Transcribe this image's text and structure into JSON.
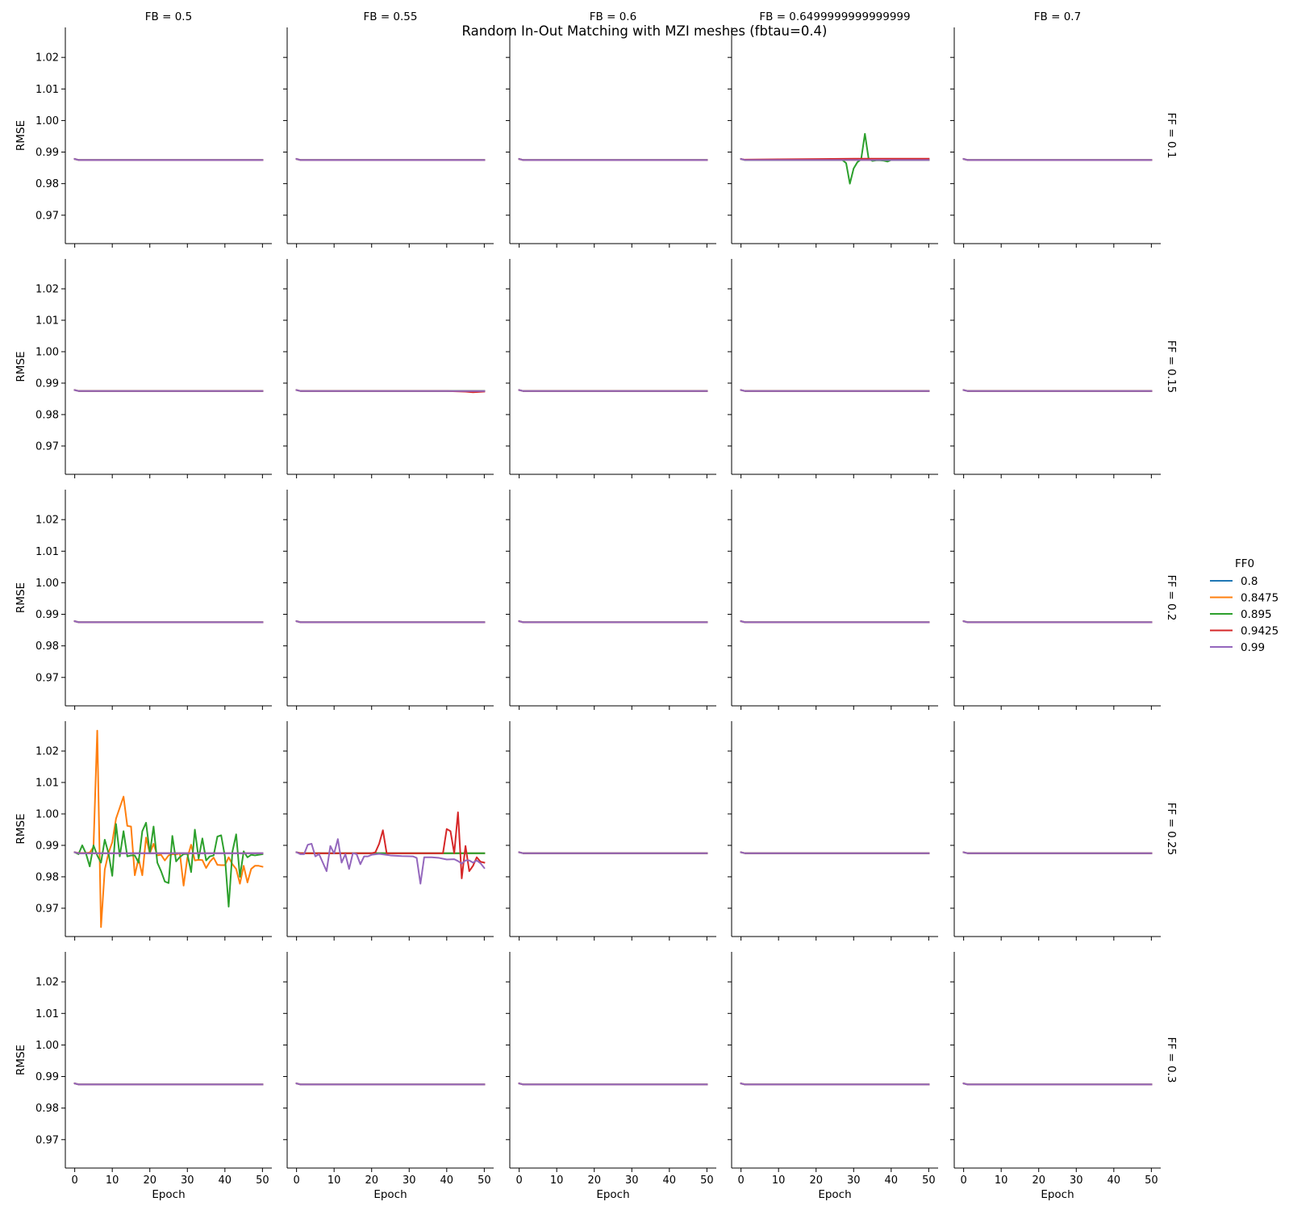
{
  "chart_data": {
    "type": "line",
    "title": "Random In-Out Matching with MZI meshes (fbtau=0.4)",
    "xlabel": "Epoch",
    "ylabel": "RMSE",
    "xlim": [
      -2.5,
      52.5
    ],
    "ylim": [
      0.961,
      1.0295
    ],
    "xticks": [
      "0",
      "10",
      "20",
      "30",
      "40",
      "50"
    ],
    "yticks": [
      "0.97",
      "0.98",
      "0.99",
      "1.00",
      "1.01",
      "1.02"
    ],
    "columns": [
      "FB = 0.5",
      "FB = 0.55",
      "FB = 0.6",
      "FB = 0.6499999999999999",
      "FB = 0.7"
    ],
    "rows": [
      "FF = 0.1",
      "FF = 0.15",
      "FF = 0.2",
      "FF = 0.25",
      "FF = 0.3"
    ],
    "legend": {
      "title": "FF0",
      "position": "right",
      "entries": [
        "0.8",
        "0.8475",
        "0.895",
        "0.9425",
        "0.99"
      ]
    },
    "series_colors": [
      "#1f77b4",
      "#ff7f0e",
      "#2ca02c",
      "#d62728",
      "#9467bd"
    ],
    "default_curve": [
      [
        0,
        0.9878
      ],
      [
        1,
        0.9875
      ],
      [
        50,
        0.9875
      ]
    ],
    "special_series": [
      {
        "row": 0,
        "col": 3,
        "series": 2,
        "points": [
          [
            0,
            0.9878
          ],
          [
            1,
            0.9875
          ],
          [
            27,
            0.9875
          ],
          [
            28,
            0.9865
          ],
          [
            29,
            0.98
          ],
          [
            30,
            0.9848
          ],
          [
            31,
            0.9868
          ],
          [
            32,
            0.9877
          ],
          [
            33,
            0.9958
          ],
          [
            34,
            0.9878
          ],
          [
            35,
            0.9872
          ],
          [
            36,
            0.9874
          ],
          [
            37,
            0.9874
          ],
          [
            38,
            0.9873
          ],
          [
            39,
            0.987
          ],
          [
            40,
            0.9875
          ],
          [
            50,
            0.9875
          ]
        ]
      },
      {
        "row": 0,
        "col": 3,
        "series": 3,
        "points": [
          [
            0,
            0.9878
          ],
          [
            1,
            0.9876
          ],
          [
            10,
            0.9877
          ],
          [
            30,
            0.9879
          ],
          [
            50,
            0.9879
          ]
        ]
      },
      {
        "row": 1,
        "col": 1,
        "series": 3,
        "points": [
          [
            0,
            0.9878
          ],
          [
            1,
            0.9875
          ],
          [
            40,
            0.9875
          ],
          [
            45,
            0.9873
          ],
          [
            47,
            0.9871
          ],
          [
            50,
            0.9873
          ]
        ]
      },
      {
        "row": 3,
        "col": 0,
        "series": 1,
        "points": [
          [
            0,
            0.9878
          ],
          [
            1,
            0.9876
          ],
          [
            2,
            0.9876
          ],
          [
            3,
            0.9876
          ],
          [
            4,
            0.9877
          ],
          [
            5,
            0.9895
          ],
          [
            6,
            1.0265
          ],
          [
            7,
            0.964
          ],
          [
            8,
            0.9823
          ],
          [
            9,
            0.9876
          ],
          [
            10,
            0.991
          ],
          [
            11,
            0.9985
          ],
          [
            12,
            1.002
          ],
          [
            13,
            1.0055
          ],
          [
            14,
            0.9962
          ],
          [
            15,
            0.996
          ],
          [
            16,
            0.9805
          ],
          [
            17,
            0.9858
          ],
          [
            18,
            0.9805
          ],
          [
            19,
            0.9925
          ],
          [
            20,
            0.9875
          ],
          [
            21,
            0.9905
          ],
          [
            22,
            0.9868
          ],
          [
            23,
            0.987
          ],
          [
            24,
            0.9852
          ],
          [
            25,
            0.9868
          ],
          [
            26,
            0.9872
          ],
          [
            27,
            0.9871
          ],
          [
            28,
            0.9875
          ],
          [
            29,
            0.9772
          ],
          [
            30,
            0.986
          ],
          [
            31,
            0.9902
          ],
          [
            32,
            0.9852
          ],
          [
            33,
            0.9854
          ],
          [
            34,
            0.9853
          ],
          [
            35,
            0.9828
          ],
          [
            36,
            0.9848
          ],
          [
            37,
            0.9861
          ],
          [
            38,
            0.9838
          ],
          [
            39,
            0.9837
          ],
          [
            40,
            0.9837
          ],
          [
            41,
            0.9862
          ],
          [
            42,
            0.984
          ],
          [
            43,
            0.9825
          ],
          [
            44,
            0.9778
          ],
          [
            45,
            0.9835
          ],
          [
            46,
            0.9782
          ],
          [
            47,
            0.9825
          ],
          [
            48,
            0.9835
          ],
          [
            49,
            0.9835
          ],
          [
            50,
            0.9832
          ]
        ]
      },
      {
        "row": 3,
        "col": 0,
        "series": 2,
        "points": [
          [
            0,
            0.9878
          ],
          [
            1,
            0.9872
          ],
          [
            2,
            0.99
          ],
          [
            3,
            0.9874
          ],
          [
            4,
            0.9833
          ],
          [
            5,
            0.99
          ],
          [
            6,
            0.9868
          ],
          [
            7,
            0.9845
          ],
          [
            8,
            0.9918
          ],
          [
            9,
            0.9875
          ],
          [
            10,
            0.9803
          ],
          [
            11,
            0.9968
          ],
          [
            12,
            0.9865
          ],
          [
            13,
            0.9945
          ],
          [
            14,
            0.9865
          ],
          [
            15,
            0.9868
          ],
          [
            16,
            0.9868
          ],
          [
            17,
            0.9845
          ],
          [
            18,
            0.9945
          ],
          [
            19,
            0.9972
          ],
          [
            20,
            0.9875
          ],
          [
            21,
            0.996
          ],
          [
            22,
            0.9845
          ],
          [
            23,
            0.9818
          ],
          [
            24,
            0.9785
          ],
          [
            25,
            0.978
          ],
          [
            26,
            0.993
          ],
          [
            27,
            0.9849
          ],
          [
            28,
            0.9863
          ],
          [
            29,
            0.9872
          ],
          [
            30,
            0.9873
          ],
          [
            31,
            0.9815
          ],
          [
            32,
            0.995
          ],
          [
            33,
            0.9858
          ],
          [
            34,
            0.9922
          ],
          [
            35,
            0.9852
          ],
          [
            36,
            0.9865
          ],
          [
            37,
            0.9868
          ],
          [
            38,
            0.9928
          ],
          [
            39,
            0.9932
          ],
          [
            40,
            0.9865
          ],
          [
            41,
            0.9705
          ],
          [
            42,
            0.988
          ],
          [
            43,
            0.9935
          ],
          [
            44,
            0.98
          ],
          [
            45,
            0.9881
          ],
          [
            46,
            0.9862
          ],
          [
            47,
            0.987
          ],
          [
            48,
            0.9868
          ],
          [
            50,
            0.9872
          ]
        ]
      },
      {
        "row": 3,
        "col": 1,
        "series": 3,
        "points": [
          [
            0,
            0.9878
          ],
          [
            1,
            0.9875
          ],
          [
            20,
            0.9875
          ],
          [
            21,
            0.9878
          ],
          [
            22,
            0.9905
          ],
          [
            23,
            0.9948
          ],
          [
            24,
            0.9875
          ],
          [
            39,
            0.9875
          ],
          [
            40,
            0.9952
          ],
          [
            41,
            0.9945
          ],
          [
            42,
            0.9875
          ],
          [
            43,
            1.0005
          ],
          [
            44,
            0.9795
          ],
          [
            45,
            0.9898
          ],
          [
            46,
            0.9818
          ],
          [
            47,
            0.9835
          ],
          [
            48,
            0.9862
          ],
          [
            49,
            0.9848
          ],
          [
            50,
            0.9845
          ]
        ]
      },
      {
        "row": 3,
        "col": 1,
        "series": 4,
        "points": [
          [
            0,
            0.9878
          ],
          [
            1,
            0.9872
          ],
          [
            2,
            0.9872
          ],
          [
            3,
            0.9902
          ],
          [
            4,
            0.9905
          ],
          [
            5,
            0.9865
          ],
          [
            6,
            0.9872
          ],
          [
            7,
            0.9845
          ],
          [
            8,
            0.9818
          ],
          [
            9,
            0.9898
          ],
          [
            10,
            0.9874
          ],
          [
            11,
            0.992
          ],
          [
            12,
            0.9845
          ],
          [
            13,
            0.9872
          ],
          [
            14,
            0.9825
          ],
          [
            15,
            0.9875
          ],
          [
            16,
            0.9872
          ],
          [
            17,
            0.984
          ],
          [
            18,
            0.9865
          ],
          [
            19,
            0.9865
          ],
          [
            20,
            0.987
          ],
          [
            22,
            0.9873
          ],
          [
            25,
            0.9868
          ],
          [
            28,
            0.9866
          ],
          [
            31,
            0.9865
          ],
          [
            32,
            0.986
          ],
          [
            33,
            0.9778
          ],
          [
            34,
            0.9862
          ],
          [
            36,
            0.9862
          ],
          [
            38,
            0.986
          ],
          [
            40,
            0.9855
          ],
          [
            42,
            0.9856
          ],
          [
            43,
            0.985
          ],
          [
            44,
            0.9842
          ],
          [
            45,
            0.9852
          ],
          [
            46,
            0.9852
          ],
          [
            47,
            0.9845
          ],
          [
            48,
            0.9852
          ],
          [
            49,
            0.9843
          ],
          [
            50,
            0.9828
          ]
        ]
      }
    ]
  }
}
